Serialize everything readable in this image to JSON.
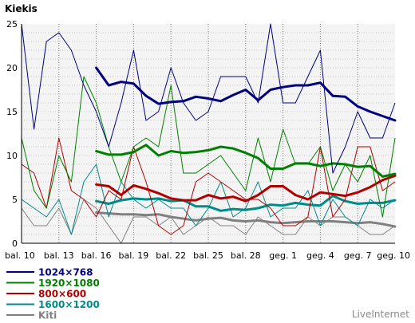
{
  "chart_data": {
    "type": "line",
    "title": "Kiekis",
    "x_ticks": [
      "bal. 10",
      "bal. 13",
      "bal. 16",
      "bal. 19",
      "bal. 22",
      "bal. 25",
      "bal. 28",
      "geg. 1",
      "geg. 4",
      "geg. 7",
      "geg. 10"
    ],
    "xlim": [
      0,
      30
    ],
    "ylim": [
      0,
      25
    ],
    "y_ticks": [
      "0",
      "5",
      "10",
      "15",
      "20",
      "25"
    ],
    "grid": true,
    "legend_position": "bottom-left",
    "background_color": "#f4f4f4",
    "watermark": "LiveInternet",
    "series": [
      {
        "name": "1024×768",
        "color": "#000080",
        "daily": [
          25,
          13,
          23,
          24,
          22,
          18,
          15,
          11,
          16,
          22,
          14,
          15,
          20,
          16,
          14,
          15,
          19,
          19,
          19,
          16,
          25,
          16,
          16,
          19,
          22,
          8,
          11,
          15,
          12,
          12,
          16
        ],
        "trend_x": [
          6,
          7,
          8,
          9,
          10,
          11,
          12,
          13,
          14,
          15,
          16,
          17,
          18,
          19,
          20,
          21,
          22,
          23,
          24,
          25,
          26,
          27,
          28,
          29,
          30
        ],
        "trend": [
          20,
          18,
          18.4,
          18.2,
          16.8,
          15.9,
          16.1,
          16.2,
          16.7,
          16.5,
          16.2,
          16.9,
          17.5,
          16.3,
          17.5,
          17.8,
          18,
          18,
          18.3,
          16.8,
          16.7,
          15.6,
          15,
          14.5,
          14
        ]
      },
      {
        "name": "1920×1080",
        "color": "#008000",
        "daily": [
          12,
          6,
          4,
          10,
          7,
          19,
          16,
          11,
          7,
          11,
          12,
          11,
          18,
          8,
          8,
          9,
          10,
          8,
          6,
          12,
          7,
          13,
          9,
          9,
          11,
          6,
          9,
          7,
          10,
          3,
          12
        ],
        "trend_x": [
          6,
          7,
          8,
          9,
          10,
          11,
          12,
          13,
          14,
          15,
          16,
          17,
          18,
          19,
          20,
          21,
          22,
          23,
          24,
          25,
          26,
          27,
          28,
          29,
          30
        ],
        "trend": [
          10.5,
          10.1,
          10.1,
          10.4,
          11.2,
          10,
          10.5,
          10.3,
          10.4,
          10.6,
          11,
          10.8,
          10.3,
          9.7,
          8.5,
          8.5,
          9.1,
          9.1,
          8.8,
          9.1,
          9,
          8.7,
          8.8,
          7.6,
          7.9
        ]
      },
      {
        "name": "800×600",
        "color": "#b00000",
        "daily": [
          9,
          8,
          4,
          12,
          6,
          5,
          3,
          6,
          5,
          11,
          7,
          2,
          1,
          2,
          7,
          8,
          7,
          6,
          5,
          5,
          4,
          2,
          2,
          3,
          11,
          3,
          5,
          11,
          11,
          6,
          7
        ],
        "trend_x": [
          6,
          7,
          8,
          9,
          10,
          11,
          12,
          13,
          14,
          15,
          16,
          17,
          18,
          19,
          20,
          21,
          22,
          23,
          24,
          25,
          26,
          27,
          28,
          29,
          30
        ],
        "trend": [
          6.7,
          6.5,
          5.5,
          6.6,
          6.2,
          5.7,
          5.1,
          4.9,
          4.9,
          5.5,
          5.1,
          5.3,
          4.8,
          5.5,
          6.5,
          6.5,
          5.5,
          5,
          5.8,
          5.6,
          5.4,
          5.8,
          6.4,
          7.2,
          7.7
        ]
      },
      {
        "name": "1600×1200",
        "color": "#008b8b",
        "daily": [
          5,
          4,
          3,
          5,
          1,
          7,
          9,
          3,
          7,
          5,
          4,
          5,
          4,
          4,
          2,
          4,
          7,
          3,
          4,
          7,
          3,
          4,
          4,
          6,
          2,
          5,
          3,
          2,
          5,
          4,
          5
        ],
        "trend_x": [
          6,
          7,
          8,
          9,
          10,
          11,
          12,
          13,
          14,
          15,
          16,
          17,
          18,
          19,
          20,
          21,
          22,
          23,
          24,
          25,
          26,
          27,
          28,
          29,
          30
        ],
        "trend": [
          4.8,
          4.5,
          4.9,
          5.1,
          5,
          5.1,
          4.8,
          4.9,
          4.2,
          4.2,
          3.7,
          3.9,
          3.8,
          4,
          4.4,
          4.3,
          4.6,
          4.4,
          4.3,
          5.4,
          4.8,
          4.5,
          4.6,
          4.6,
          4.9
        ]
      },
      {
        "name": "Kiti",
        "color": "#808080",
        "daily": [
          4,
          2,
          2,
          4,
          1,
          5,
          4,
          2,
          0,
          3,
          3,
          2,
          3,
          1,
          2,
          3,
          2,
          2,
          1,
          3,
          2,
          1,
          1,
          3,
          2,
          3,
          3,
          2,
          1,
          1,
          2
        ],
        "trend_x": [
          6,
          7,
          8,
          9,
          10,
          11,
          12,
          13,
          14,
          15,
          16,
          17,
          18,
          19,
          20,
          21,
          22,
          23,
          24,
          25,
          26,
          27,
          28,
          29,
          30
        ],
        "trend": [
          3.5,
          3.4,
          3.3,
          3.3,
          3.2,
          3.3,
          3,
          2.8,
          2.6,
          2.8,
          2.9,
          2.6,
          2.5,
          2.6,
          2.4,
          2.3,
          2.4,
          2.5,
          2.5,
          2.5,
          2.4,
          2.3,
          2.4,
          2.2,
          1.9
        ]
      }
    ]
  }
}
